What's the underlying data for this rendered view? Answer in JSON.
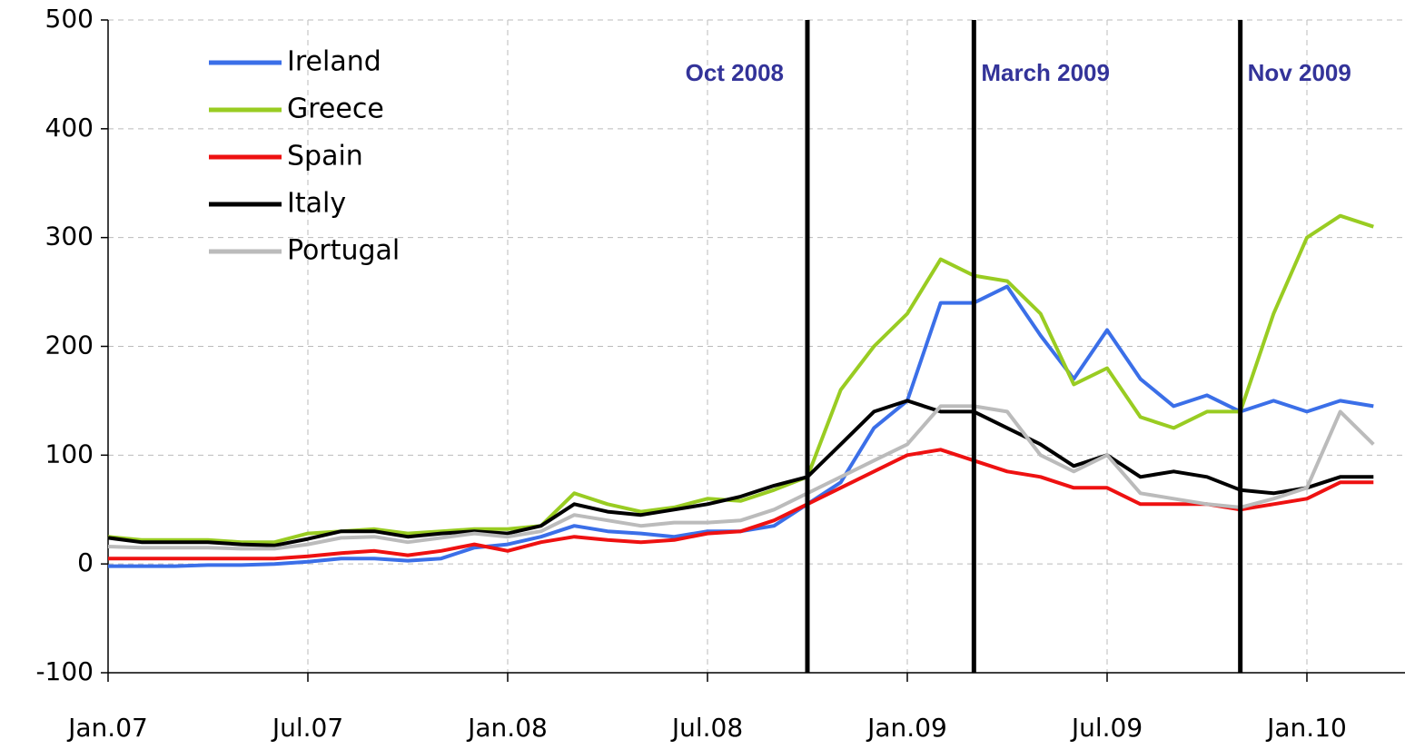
{
  "chart_data": {
    "type": "line",
    "x": [
      "2007-01",
      "2007-02",
      "2007-03",
      "2007-04",
      "2007-05",
      "2007-06",
      "2007-07",
      "2007-08",
      "2007-09",
      "2007-10",
      "2007-11",
      "2007-12",
      "2008-01",
      "2008-02",
      "2008-03",
      "2008-04",
      "2008-05",
      "2008-06",
      "2008-07",
      "2008-08",
      "2008-09",
      "2008-10",
      "2008-11",
      "2008-12",
      "2009-01",
      "2009-02",
      "2009-03",
      "2009-04",
      "2009-05",
      "2009-06",
      "2009-07",
      "2009-08",
      "2009-09",
      "2009-10",
      "2009-11",
      "2009-12",
      "2010-01",
      "2010-02",
      "2010-03"
    ],
    "series": [
      {
        "name": "Ireland",
        "color": "#3b6fe8",
        "values": [
          -2,
          -2,
          -2,
          -1,
          -1,
          0,
          2,
          5,
          5,
          3,
          5,
          15,
          18,
          25,
          35,
          30,
          28,
          25,
          30,
          30,
          35,
          55,
          75,
          125,
          150,
          240,
          240,
          255,
          210,
          170,
          215,
          170,
          145,
          155,
          140,
          150,
          140,
          150,
          145
        ]
      },
      {
        "name": "Greece",
        "color": "#99cc22",
        "values": [
          25,
          22,
          22,
          22,
          20,
          20,
          28,
          30,
          32,
          28,
          30,
          32,
          32,
          35,
          65,
          55,
          48,
          52,
          60,
          58,
          68,
          80,
          160,
          200,
          230,
          280,
          265,
          260,
          230,
          165,
          180,
          135,
          125,
          140,
          140,
          230,
          300,
          320,
          310
        ]
      },
      {
        "name": "Spain",
        "color": "#ee1111",
        "values": [
          5,
          5,
          5,
          5,
          5,
          5,
          7,
          10,
          12,
          8,
          12,
          18,
          12,
          20,
          25,
          22,
          20,
          22,
          28,
          30,
          40,
          55,
          70,
          85,
          100,
          105,
          95,
          85,
          80,
          70,
          70,
          55,
          55,
          55,
          50,
          55,
          60,
          75,
          75
        ]
      },
      {
        "name": "Italy",
        "color": "#000000",
        "values": [
          24,
          20,
          20,
          20,
          18,
          17,
          23,
          30,
          30,
          25,
          28,
          30,
          28,
          35,
          55,
          48,
          45,
          50,
          55,
          62,
          72,
          80,
          110,
          140,
          150,
          140,
          140,
          125,
          110,
          90,
          100,
          80,
          85,
          80,
          68,
          65,
          70,
          80,
          80
        ]
      },
      {
        "name": "Portugal",
        "color": "#bbbbbb",
        "values": [
          16,
          15,
          15,
          15,
          14,
          14,
          18,
          24,
          25,
          20,
          24,
          28,
          25,
          30,
          45,
          40,
          35,
          38,
          38,
          40,
          50,
          65,
          80,
          95,
          110,
          145,
          145,
          140,
          100,
          85,
          100,
          65,
          60,
          55,
          52,
          60,
          70,
          140,
          110
        ]
      }
    ],
    "xlim": [
      "2007-01",
      "2010-04"
    ],
    "xticks": [
      {
        "value": "2007-01",
        "label": "Jan.07"
      },
      {
        "value": "2007-07",
        "label": "Jul.07"
      },
      {
        "value": "2008-01",
        "label": "Jan.08"
      },
      {
        "value": "2008-07",
        "label": "Jul.08"
      },
      {
        "value": "2009-01",
        "label": "Jan.09"
      },
      {
        "value": "2009-07",
        "label": "Jul.09"
      },
      {
        "value": "2010-01",
        "label": "Jan.10"
      }
    ],
    "ylim": [
      -100,
      500
    ],
    "yticks": [
      -100,
      0,
      100,
      200,
      300,
      400,
      500
    ],
    "grid": true,
    "legend": "upper left",
    "annotations": [
      {
        "text": "Oct 2008",
        "x": "2008-10"
      },
      {
        "text": "March 2009",
        "x": "2009-03"
      },
      {
        "text": "Nov 2009",
        "x": "2009-11"
      }
    ]
  }
}
